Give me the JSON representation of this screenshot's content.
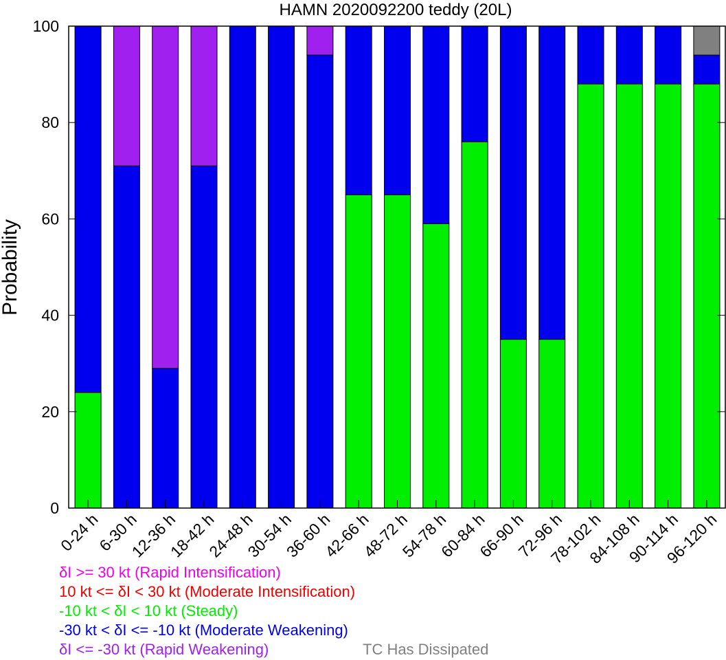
{
  "chart_data": {
    "type": "bar",
    "stacked": true,
    "title": "HAMN 2020092200 teddy (20L)",
    "xlabel": "",
    "ylabel": "Probability",
    "ylim": [
      0,
      100
    ],
    "yticks": [
      "0",
      "20",
      "40",
      "60",
      "80",
      "100"
    ],
    "categories": [
      "0-24 h",
      "6-30 h",
      "12-36 h",
      "18-42 h",
      "24-48 h",
      "30-54 h",
      "36-60 h",
      "42-66 h",
      "48-72 h",
      "54-78 h",
      "60-84 h",
      "66-90 h",
      "72-96 h",
      "78-102 h",
      "84-108 h",
      "90-114 h",
      "96-120 h"
    ],
    "series": [
      {
        "name": "-10 kt < δI < 10 kt (Steady)",
        "color": "#00ee00",
        "values": [
          24,
          0,
          0,
          0,
          0,
          0,
          0,
          65,
          65,
          59,
          76,
          35,
          35,
          88,
          88,
          88,
          88
        ]
      },
      {
        "name": "-30 kt < δI <= -10 kt (Moderate Weakening)",
        "color": "#0000ee",
        "values": [
          76,
          71,
          29,
          71,
          100,
          100,
          94,
          35,
          35,
          41,
          24,
          65,
          65,
          12,
          12,
          12,
          6
        ]
      },
      {
        "name": "δI <= -30 kt (Rapid Weakening)",
        "color": "#a020f0",
        "values": [
          0,
          29,
          71,
          29,
          0,
          0,
          6,
          0,
          0,
          0,
          0,
          0,
          0,
          0,
          0,
          0,
          0
        ]
      },
      {
        "name": "TC Has Dissipated",
        "color": "#808080",
        "values": [
          0,
          0,
          0,
          0,
          0,
          0,
          0,
          0,
          0,
          0,
          0,
          0,
          0,
          0,
          0,
          0,
          6
        ]
      }
    ],
    "grid": false
  },
  "legend": {
    "ri": {
      "text": "δI >= 30 kt (Rapid Intensification)",
      "color": "#ee00ee"
    },
    "mi": {
      "text": "10 kt <= δI < 30 kt (Moderate Intensification)",
      "color": "#ee0000"
    },
    "steady": {
      "text": "-10 kt < δI < 10 kt (Steady)",
      "color": "#00ee00"
    },
    "mw": {
      "text": "-30 kt < δI <= -10 kt (Moderate Weakening)",
      "color": "#0000ee"
    },
    "rw": {
      "text": "δI <= -30 kt (Rapid Weakening)",
      "color": "#a020f0"
    },
    "dissipated": {
      "text": "TC Has Dissipated",
      "color": "#808080"
    }
  }
}
